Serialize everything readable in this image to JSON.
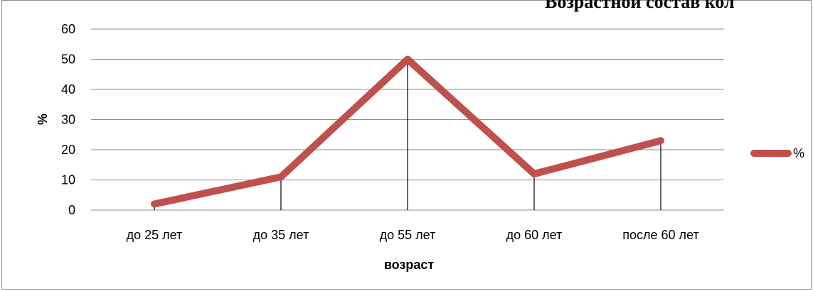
{
  "chart_data": {
    "type": "line",
    "title": "Возрастной состав кол",
    "xlabel": "возраст",
    "ylabel": "%",
    "categories": [
      "до 25 лет",
      "до 35 лет",
      "до 55 лет",
      "до 60 лет",
      "после 60 лет"
    ],
    "series": [
      {
        "name": "%",
        "values": [
          2,
          11,
          50,
          12,
          23
        ],
        "color": "#c0504d"
      }
    ],
    "ylim": [
      0,
      60
    ],
    "yticks": [
      "0",
      "10",
      "20",
      "30",
      "40",
      "50",
      "60"
    ],
    "grid": true,
    "drop_lines": true,
    "legend": "right"
  }
}
